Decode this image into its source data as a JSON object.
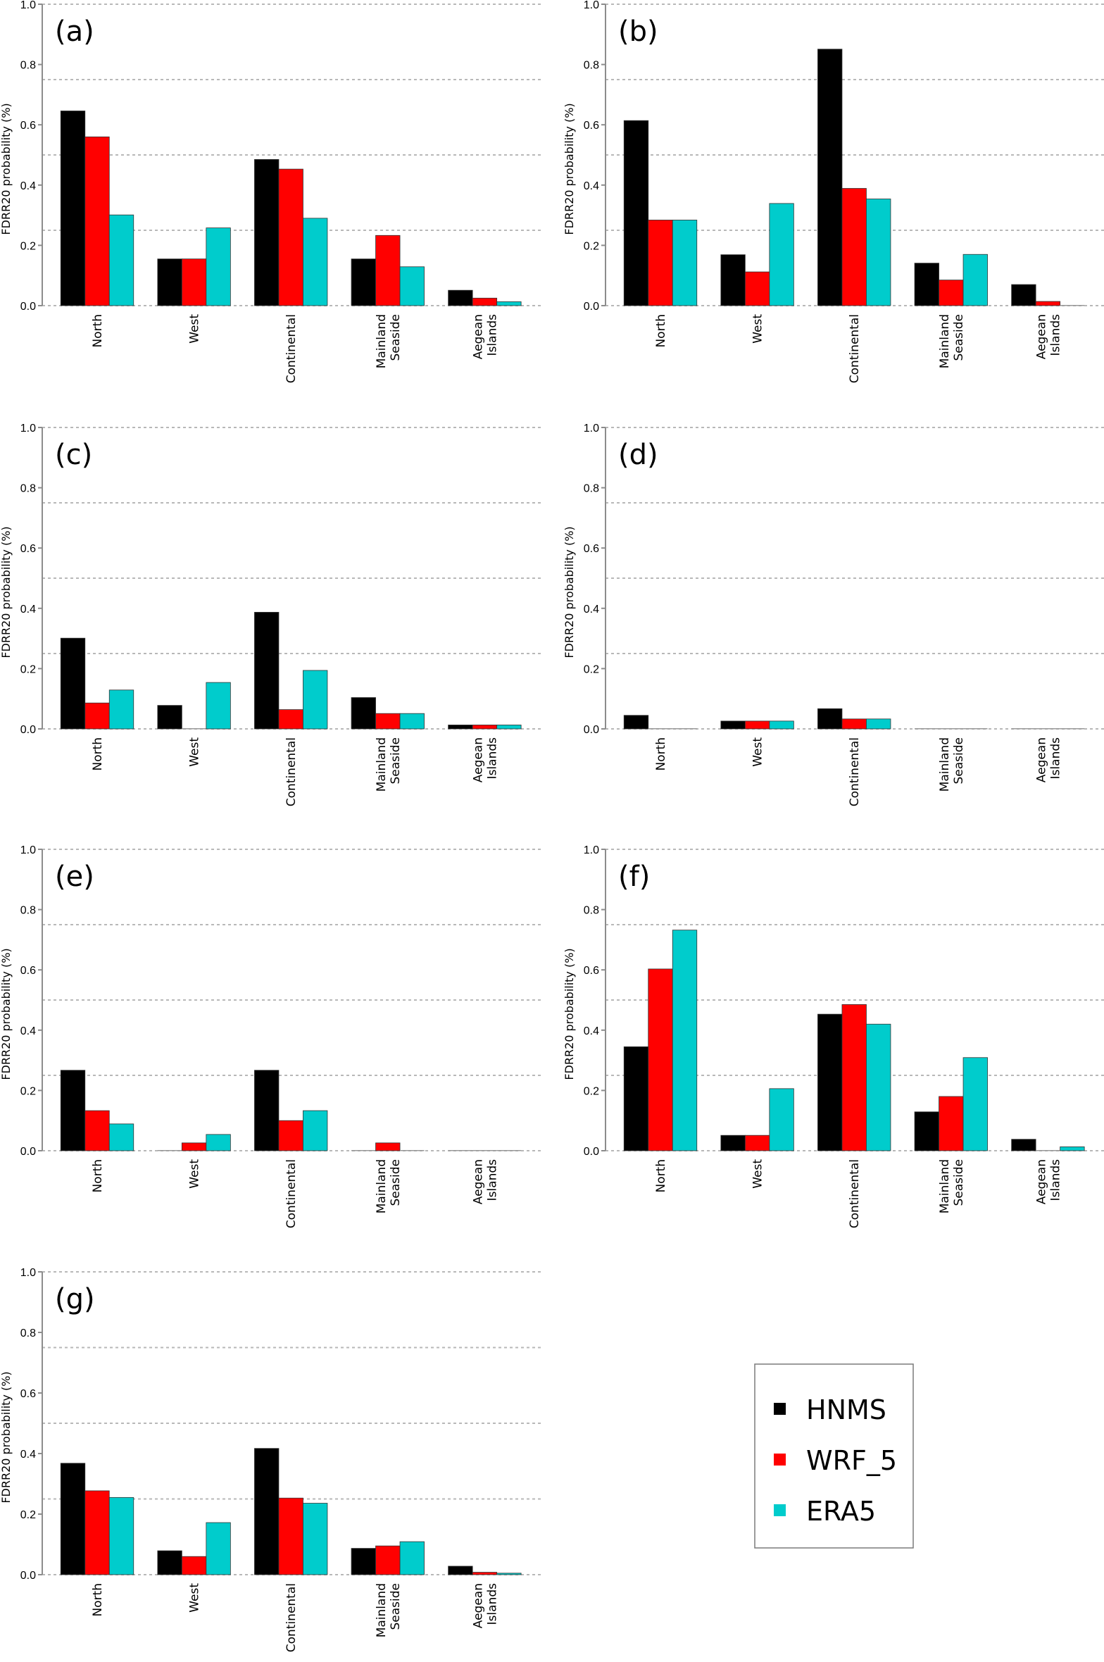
{
  "chart_data": {
    "type": "bar",
    "categories": [
      "North",
      "West",
      "Continental",
      "Mainland Seaside",
      "Aegean Islands"
    ],
    "category_label_lines": [
      [
        "North"
      ],
      [
        "West"
      ],
      [
        "Continental"
      ],
      [
        "Mainland",
        "Seaside"
      ],
      [
        "Aegean",
        "Islands"
      ]
    ],
    "ylabel": "FDRR20 probability (%)",
    "ylim": [
      0,
      1.0
    ],
    "yticks": [
      0.0,
      0.2,
      0.4,
      0.6,
      0.8,
      1.0
    ],
    "ytick_labels": [
      "0.0",
      "0.2",
      "0.4",
      "0.6",
      "0.8",
      "1.0"
    ],
    "grid_lines": [
      0.0,
      0.25,
      0.5,
      0.75,
      1.0
    ],
    "grid": true,
    "legend": {
      "placement": "bottom-right",
      "entries": [
        {
          "name": "HNMS",
          "color": "#000000"
        },
        {
          "name": "WRF_5",
          "color": "#ff0000"
        },
        {
          "name": "ERA5",
          "color": "#00cccc"
        }
      ]
    },
    "panels": [
      {
        "label": "(a)",
        "series": [
          {
            "name": "HNMS",
            "values": [
              0.646,
              0.155,
              0.485,
              0.155,
              0.051
            ]
          },
          {
            "name": "WRF_5",
            "values": [
              0.56,
              0.155,
              0.453,
              0.233,
              0.025
            ]
          },
          {
            "name": "ERA5",
            "values": [
              0.301,
              0.258,
              0.29,
              0.129,
              0.013
            ]
          }
        ]
      },
      {
        "label": "(b)",
        "series": [
          {
            "name": "HNMS",
            "values": [
              0.614,
              0.169,
              0.851,
              0.141,
              0.07
            ]
          },
          {
            "name": "WRF_5",
            "values": [
              0.284,
              0.112,
              0.389,
              0.085,
              0.014
            ]
          },
          {
            "name": "ERA5",
            "values": [
              0.284,
              0.339,
              0.354,
              0.17,
              0.0
            ]
          }
        ]
      },
      {
        "label": "(c)",
        "series": [
          {
            "name": "HNMS",
            "values": [
              0.301,
              0.078,
              0.387,
              0.104,
              0.013
            ]
          },
          {
            "name": "WRF_5",
            "values": [
              0.086,
              0.0,
              0.064,
              0.051,
              0.013
            ]
          },
          {
            "name": "ERA5",
            "values": [
              0.129,
              0.154,
              0.194,
              0.051,
              0.013
            ]
          }
        ]
      },
      {
        "label": "(d)",
        "series": [
          {
            "name": "HNMS",
            "values": [
              0.045,
              0.026,
              0.067,
              0.0,
              0.0
            ]
          },
          {
            "name": "WRF_5",
            "values": [
              0.0,
              0.026,
              0.033,
              0.0,
              0.0
            ]
          },
          {
            "name": "ERA5",
            "values": [
              0.0,
              0.026,
              0.033,
              0.0,
              0.0
            ]
          }
        ]
      },
      {
        "label": "(e)",
        "series": [
          {
            "name": "HNMS",
            "values": [
              0.267,
              0.0,
              0.267,
              0.0,
              0.0
            ]
          },
          {
            "name": "WRF_5",
            "values": [
              0.133,
              0.026,
              0.1,
              0.026,
              0.0
            ]
          },
          {
            "name": "ERA5",
            "values": [
              0.089,
              0.054,
              0.133,
              0.0,
              0.0
            ]
          }
        ]
      },
      {
        "label": "(f)",
        "series": [
          {
            "name": "HNMS",
            "values": [
              0.345,
              0.051,
              0.453,
              0.129,
              0.038
            ]
          },
          {
            "name": "WRF_5",
            "values": [
              0.603,
              0.051,
              0.485,
              0.18,
              0.0
            ]
          },
          {
            "name": "ERA5",
            "values": [
              0.732,
              0.206,
              0.42,
              0.309,
              0.013
            ]
          }
        ]
      },
      {
        "label": "(g)",
        "series": [
          {
            "name": "HNMS",
            "values": [
              0.368,
              0.079,
              0.417,
              0.087,
              0.028
            ]
          },
          {
            "name": "WRF_5",
            "values": [
              0.277,
              0.06,
              0.253,
              0.095,
              0.008
            ]
          },
          {
            "name": "ERA5",
            "values": [
              0.255,
              0.172,
              0.236,
              0.109,
              0.005
            ]
          }
        ]
      }
    ]
  }
}
